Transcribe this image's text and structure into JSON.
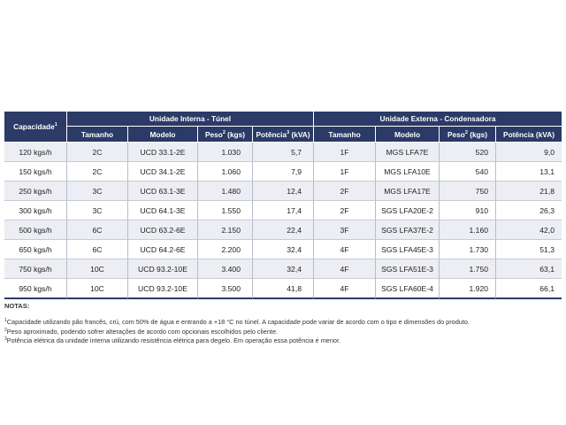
{
  "table": {
    "group_headers": {
      "capacity": "Capacidade",
      "capacity_sup": "1",
      "internal": "Unidade Interna - Túnel",
      "external": "Unidade Externa - Condensadora"
    },
    "columns": {
      "int_size": "Tamanho",
      "int_model": "Modelo",
      "int_weight": "Peso",
      "int_weight_sup": "2",
      "int_weight_unit": " (kgs)",
      "int_power": "Potência",
      "int_power_sup": "3",
      "int_power_unit": " (kVA)",
      "ext_size": "Tamanho",
      "ext_model": "Modelo",
      "ext_weight": "Peso",
      "ext_weight_sup": "2",
      "ext_weight_unit": " (kgs)",
      "ext_power": "Potência (kVA)"
    },
    "rows": [
      {
        "capacity": "120 kgs/h",
        "int_size": "2C",
        "int_model": "UCD 33.1-2E",
        "int_weight": "1.030",
        "int_power": "5,7",
        "ext_size": "1F",
        "ext_model": "MGS LFA7E",
        "ext_weight": "520",
        "ext_power": "9,0"
      },
      {
        "capacity": "150 kgs/h",
        "int_size": "2C",
        "int_model": "UCD 34.1-2E",
        "int_weight": "1.060",
        "int_power": "7,9",
        "ext_size": "1F",
        "ext_model": "MGS LFA10E",
        "ext_weight": "540",
        "ext_power": "13,1"
      },
      {
        "capacity": "250 kgs/h",
        "int_size": "3C",
        "int_model": "UCD 63.1-3E",
        "int_weight": "1.480",
        "int_power": "12,4",
        "ext_size": "2F",
        "ext_model": "MGS LFA17E",
        "ext_weight": "750",
        "ext_power": "21,8"
      },
      {
        "capacity": "300 kgs/h",
        "int_size": "3C",
        "int_model": "UCD 64.1-3E",
        "int_weight": "1.550",
        "int_power": "17,4",
        "ext_size": "2F",
        "ext_model": "SGS LFA20E-2",
        "ext_weight": "910",
        "ext_power": "26,3"
      },
      {
        "capacity": "500 kgs/h",
        "int_size": "6C",
        "int_model": "UCD 63.2-6E",
        "int_weight": "2.150",
        "int_power": "22,4",
        "ext_size": "3F",
        "ext_model": "SGS LFA37E-2",
        "ext_weight": "1.160",
        "ext_power": "42,0"
      },
      {
        "capacity": "650 kgs/h",
        "int_size": "6C",
        "int_model": "UCD 64.2-6E",
        "int_weight": "2.200",
        "int_power": "32,4",
        "ext_size": "4F",
        "ext_model": "SGS LFA45E-3",
        "ext_weight": "1.730",
        "ext_power": "51,3"
      },
      {
        "capacity": "750 kgs/h",
        "int_size": "10C",
        "int_model": "UCD 93.2-10E",
        "int_weight": "3.400",
        "int_power": "32,4",
        "ext_size": "4F",
        "ext_model": "SGS LFA51E-3",
        "ext_weight": "1.750",
        "ext_power": "63,1"
      },
      {
        "capacity": "950 kgs/h",
        "int_size": "10C",
        "int_model": "UCD 93.2-10E",
        "int_weight": "3.500",
        "int_power": "41,8",
        "ext_size": "4F",
        "ext_model": "SGS LFA60E-4",
        "ext_weight": "1.920",
        "ext_power": "66,1"
      }
    ]
  },
  "notes": {
    "title": "NOTAS:",
    "items": [
      {
        "sup": "1",
        "text": "Capacidade utilizando pão francês, crú, com 50% de água e entrando a +18 °C no túnel. A capacidade pode variar de acordo com o tipo e dimensões do produto."
      },
      {
        "sup": "2",
        "text": "Peso aproximado, podendo sofrer alterações de acordo com opcionais escolhidos pelo cliente."
      },
      {
        "sup": "3",
        "text": "Potência elétrica da unidade interna utilizando resistência elétrica para degelo. Em operação essa potência é menor."
      }
    ]
  },
  "colors": {
    "header_bg": "#2b3a66",
    "row_alt_bg": "#eceef3"
  }
}
